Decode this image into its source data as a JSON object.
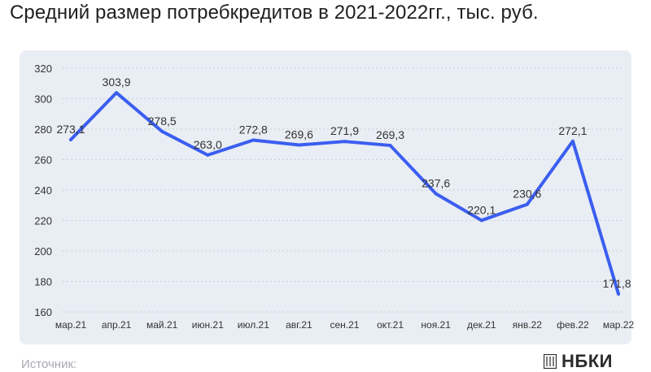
{
  "header": {
    "title": "Средний размер потребкредитов в 2021-2022гг., тыс. руб."
  },
  "footer": {
    "source_label": "Источник:",
    "logo_text": "НБКИ"
  },
  "colors": {
    "line": "#3b5ef0",
    "panel": "#e9edf4",
    "grid": "#c9ced8",
    "text": "#333333"
  },
  "chart_data": {
    "type": "line",
    "title": "Средний размер потребкредитов в 2021-2022гг., тыс. руб.",
    "categories": [
      "мар.21",
      "апр.21",
      "май.21",
      "июн.21",
      "июл.21",
      "авг.21",
      "сен.21",
      "окт.21",
      "ноя.21",
      "дек.21",
      "янв.22",
      "фев.22",
      "мар.22"
    ],
    "series": [
      {
        "values": [
          273.1,
          303.9,
          278.5,
          263.0,
          272.8,
          269.6,
          271.9,
          269.3,
          237.6,
          220.1,
          230.6,
          272.1,
          171.8
        ],
        "labels": [
          "273,1",
          "303,9",
          "278,5",
          "263,0",
          "272,8",
          "269,6",
          "271,9",
          "269,3",
          "237,6",
          "220,1",
          "230,6",
          "272,1",
          "171,8"
        ]
      }
    ],
    "ylim": [
      160,
      320
    ],
    "yticks": [
      "160",
      "180",
      "200",
      "220",
      "240",
      "260",
      "280",
      "300",
      "320"
    ],
    "ytick_values": [
      160,
      180,
      200,
      220,
      240,
      260,
      280,
      300,
      320
    ],
    "grid": true,
    "legend": "none"
  }
}
